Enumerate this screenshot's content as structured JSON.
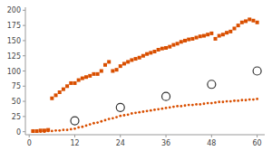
{
  "chart_data": {
    "type": "scatter",
    "xlim": [
      -1,
      62
    ],
    "ylim": [
      -5,
      205
    ],
    "xticks": [
      0,
      12,
      24,
      36,
      48,
      60
    ],
    "yticks": [
      0,
      25,
      50,
      75,
      100,
      125,
      150,
      175,
      200
    ],
    "grid": false,
    "series": [
      {
        "color": "#d94f00",
        "marker": "square",
        "x": [
          1,
          2,
          3,
          4,
          5,
          6,
          7,
          8,
          9,
          10,
          11,
          12,
          13,
          14,
          15,
          16,
          17,
          18,
          19,
          20,
          21,
          22,
          23,
          24,
          25,
          26,
          27,
          28,
          29,
          30,
          31,
          32,
          33,
          34,
          35,
          36,
          37,
          38,
          39,
          40,
          41,
          42,
          43,
          44,
          45,
          46,
          47,
          48,
          49,
          50,
          51,
          52,
          53,
          54,
          55,
          56,
          57,
          58,
          59,
          60
        ],
        "values": [
          1,
          1,
          2,
          2,
          3,
          55,
          60,
          65,
          70,
          75,
          80,
          80,
          85,
          88,
          90,
          92,
          95,
          95,
          100,
          110,
          115,
          100,
          102,
          108,
          112,
          115,
          118,
          120,
          122,
          125,
          128,
          130,
          132,
          135,
          137,
          138,
          140,
          143,
          145,
          148,
          150,
          152,
          153,
          155,
          157,
          158,
          160,
          162,
          153,
          158,
          160,
          163,
          165,
          170,
          175,
          180,
          182,
          185,
          183,
          180
        ]
      },
      {
        "color": "#d94f00",
        "marker": "dot",
        "x": [
          1,
          2,
          3,
          4,
          5,
          6,
          7,
          8,
          9,
          10,
          11,
          12,
          13,
          14,
          15,
          16,
          17,
          18,
          19,
          20,
          21,
          22,
          23,
          24,
          25,
          26,
          27,
          28,
          29,
          30,
          31,
          32,
          33,
          34,
          35,
          36,
          37,
          38,
          39,
          40,
          41,
          42,
          43,
          44,
          45,
          46,
          47,
          48,
          49,
          50,
          51,
          52,
          53,
          54,
          55,
          56,
          57,
          58,
          59,
          60
        ],
        "values": [
          0,
          0,
          0,
          0,
          1,
          1,
          2,
          2,
          3,
          3,
          4,
          5,
          7,
          8,
          10,
          12,
          14,
          15,
          17,
          19,
          21,
          22,
          24,
          26,
          27,
          28,
          30,
          31,
          32,
          33,
          34,
          35,
          36,
          37,
          38,
          39,
          40,
          41,
          42,
          42,
          43,
          44,
          44,
          45,
          45,
          46,
          47,
          47,
          48,
          49,
          49,
          50,
          50,
          51,
          51,
          52,
          52,
          53,
          53,
          54
        ]
      },
      {
        "color": "#333333",
        "marker": "open-circle",
        "x": [
          12,
          24,
          36,
          48,
          60
        ],
        "values": [
          18,
          40,
          58,
          78,
          100
        ]
      }
    ]
  }
}
